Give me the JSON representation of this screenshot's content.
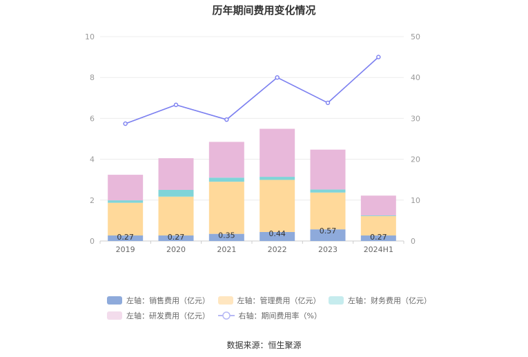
{
  "chart_data": {
    "type": "bar",
    "title": "历年期间费用变化情况",
    "categories": [
      "2019",
      "2020",
      "2021",
      "2022",
      "2023",
      "2024H1"
    ],
    "series": [
      {
        "name": "左轴：销售费用（亿元）",
        "axis": "left",
        "kind": "stacked-bar",
        "color": "#8eaadb",
        "values": [
          0.27,
          0.27,
          0.35,
          0.44,
          0.57,
          0.27
        ],
        "labels": [
          "0.27",
          "0.27",
          "0.35",
          "0.44",
          "0.57",
          "0.27"
        ]
      },
      {
        "name": "左轴：管理费用（亿元）",
        "axis": "left",
        "kind": "stacked-bar",
        "color": "#ffd99a",
        "values": [
          1.6,
          1.9,
          2.55,
          2.55,
          1.8,
          0.95
        ]
      },
      {
        "name": "左轴：财务费用（亿元）",
        "axis": "left",
        "kind": "stacked-bar",
        "color": "#80d4d8",
        "values": [
          0.12,
          0.33,
          0.2,
          0.15,
          0.15,
          0.03
        ]
      },
      {
        "name": "左轴：研发费用（亿元）",
        "axis": "left",
        "kind": "stacked-bar",
        "color": "#e8b8da",
        "values": [
          1.25,
          1.55,
          1.75,
          2.35,
          1.95,
          0.97
        ]
      },
      {
        "name": "右轴：期间费用率（%）",
        "axis": "right",
        "kind": "line",
        "color": "#7b7ff0",
        "values": [
          28.7,
          33.3,
          29.7,
          40.0,
          33.8,
          45.0
        ]
      }
    ],
    "left_axis": {
      "ylim": [
        0,
        10
      ],
      "ticks": [
        "0",
        "2",
        "4",
        "6",
        "8",
        "10"
      ]
    },
    "right_axis": {
      "ylim": [
        0,
        50
      ],
      "ticks": [
        "0",
        "10",
        "20",
        "30",
        "40",
        "50"
      ]
    },
    "grid": true,
    "legend_position": "bottom"
  },
  "source": "数据来源：恒生聚源"
}
